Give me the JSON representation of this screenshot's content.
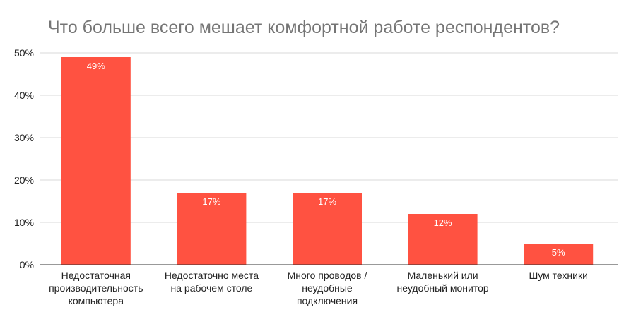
{
  "chart_data": {
    "type": "bar",
    "title": "Что больше всего мешает комфортной работе респондентов?",
    "categories": [
      [
        "Недостаточная",
        "производительность",
        "компьютера"
      ],
      [
        "Недостаточно места",
        "на рабочем столе"
      ],
      [
        "Много проводов /",
        "неудобные",
        "подключения"
      ],
      [
        "Маленький или",
        "неудобный монитор"
      ],
      [
        "Шум техники"
      ]
    ],
    "values": [
      49,
      17,
      17,
      12,
      5
    ],
    "data_labels": [
      "49%",
      "17%",
      "17%",
      "12%",
      "5%"
    ],
    "y_ticks": [
      0,
      10,
      20,
      30,
      40,
      50
    ],
    "y_tick_labels": [
      "0%",
      "10%",
      "20%",
      "30%",
      "40%",
      "50%"
    ],
    "ylim": [
      0,
      50
    ],
    "xlabel": "",
    "ylabel": "",
    "grid": true,
    "legend": "none",
    "colors": {
      "bar": "#ff5241",
      "grid": "#d9d9d9",
      "axis": "#333333",
      "title": "#757575"
    }
  }
}
